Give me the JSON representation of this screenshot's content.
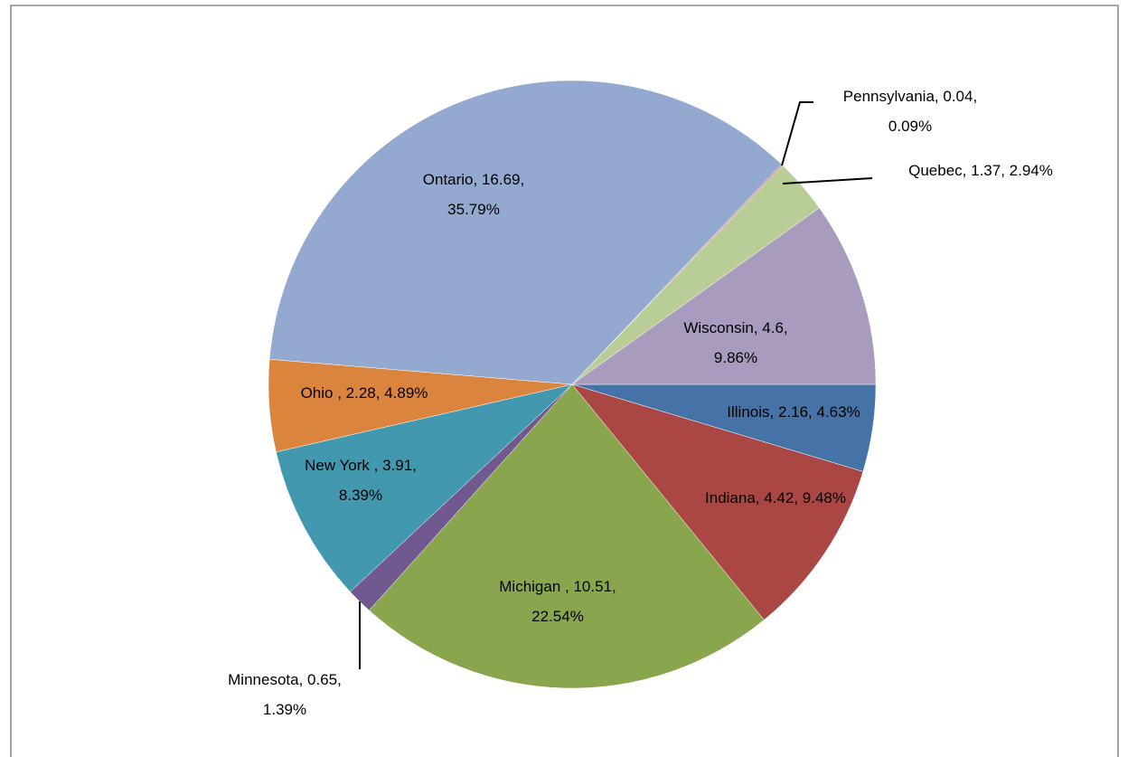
{
  "chart_data": {
    "type": "pie",
    "categories": [
      "Illinois",
      "Indiana",
      "Michigan",
      "Minnesota",
      "New York",
      "Ohio",
      "Ontario",
      "Pennsylvania",
      "Quebec",
      "Wisconsin"
    ],
    "values": [
      2.16,
      4.42,
      10.51,
      0.65,
      3.91,
      2.28,
      16.69,
      0.04,
      1.37,
      4.6
    ],
    "value_labels": [
      "Illinois, 2.16, 4.63%",
      "Indiana, 4.42, 9.48%",
      "Michigan , 10.51,\n22.54%",
      "Minnesota, 0.65,\n1.39%",
      "New York , 3.91,\n8.39%",
      "Ohio , 2.28, 4.89%",
      "Ontario, 16.69,\n35.79%",
      "Pennsylvania, 0.04,\n0.09%",
      "Quebec, 1.37, 2.94%",
      "Wisconsin, 4.6,\n9.86%"
    ],
    "colors": [
      "#4572a7",
      "#aa4643",
      "#89a54e",
      "#71588f",
      "#4198af",
      "#db843d",
      "#93a9cf",
      "#d19392",
      "#b9cd96",
      "#a99bbd"
    ]
  }
}
